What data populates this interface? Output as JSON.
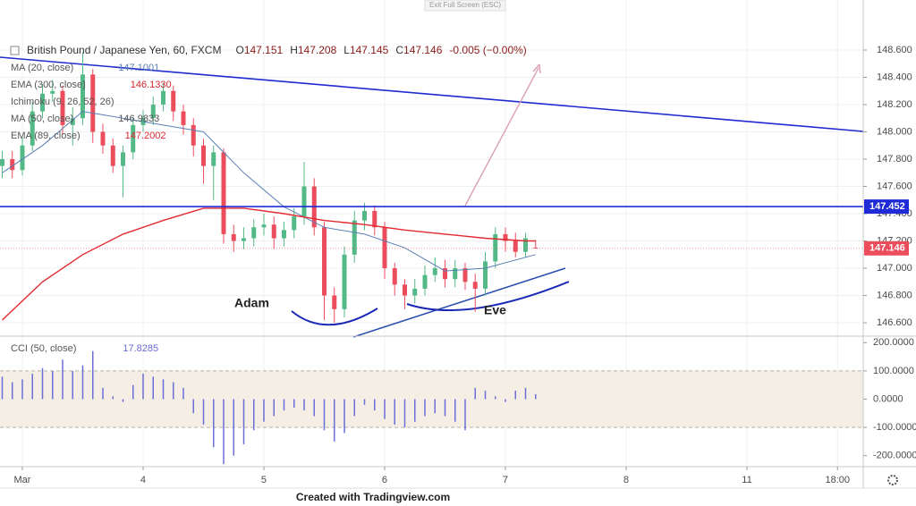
{
  "ui": {
    "exit_button": "Exit Full Screen (ESC)",
    "footer": "Created with Tradingview.com"
  },
  "chart_data": [
    {
      "type": "candlestick",
      "title": "British Pound / Japanese Yen, 60, FXCM",
      "ohlc": [
        {
          "label": "O",
          "value": 147.151
        },
        {
          "label": "H",
          "value": 147.208
        },
        {
          "label": "L",
          "value": 147.145
        },
        {
          "label": "C",
          "value": 147.146
        }
      ],
      "change": {
        "value": -0.005,
        "label": "-0.005 (−0.00%)"
      },
      "xlim": [
        -4.444,
        167.111
      ],
      "ylim": [
        146.502,
        148.967
      ],
      "yticks": [
        {
          "value": 146.6,
          "label": "146.600"
        },
        {
          "value": 146.8,
          "label": "146.800"
        },
        {
          "value": 147.0,
          "label": "147.000"
        },
        {
          "value": 147.2,
          "label": "147.200"
        },
        {
          "value": 147.4,
          "label": "147.400"
        },
        {
          "value": 147.6,
          "label": "147.600"
        },
        {
          "value": 147.8,
          "label": "147.800"
        },
        {
          "value": 148.0,
          "label": "148.000"
        },
        {
          "value": 148.2,
          "label": "148.200"
        },
        {
          "value": 148.4,
          "label": "148.400"
        },
        {
          "value": 148.6,
          "label": "148.600"
        }
      ],
      "grid": true,
      "up_color": "#53b987",
      "down_color": "#eb4d5c",
      "x": [
        -4,
        -2,
        0,
        2,
        4,
        6,
        8,
        10,
        12,
        14,
        16,
        18,
        20,
        22,
        24,
        26,
        28,
        30,
        32,
        34,
        36,
        38,
        40,
        42,
        44,
        46,
        48,
        50,
        52,
        54,
        56,
        58,
        60,
        62,
        64,
        66,
        68,
        70,
        72,
        74,
        76,
        78,
        80,
        82,
        84,
        86,
        88,
        90,
        92,
        94,
        96,
        98,
        100,
        102
      ],
      "candles": {
        "open": [
          147.75,
          147.8,
          147.72,
          147.9,
          148.15,
          148.28,
          148.3,
          148.05,
          148.1,
          148.42,
          148.0,
          147.9,
          147.75,
          147.85,
          148.05,
          148.1,
          148.2,
          148.3,
          148.15,
          148.05,
          147.9,
          147.75,
          147.85,
          147.25,
          147.2,
          147.22,
          147.3,
          147.32,
          147.22,
          147.28,
          147.38,
          147.6,
          147.3,
          146.8,
          146.7,
          147.1,
          147.35,
          147.42,
          147.3,
          147.0,
          146.88,
          146.8,
          146.85,
          146.95,
          147.0,
          146.92,
          147.0,
          146.9,
          146.85,
          147.05,
          147.25,
          147.2,
          147.12,
          147.151
        ],
        "high": [
          147.86,
          147.86,
          147.96,
          148.22,
          148.35,
          148.38,
          148.34,
          148.18,
          148.58,
          148.46,
          148.06,
          147.95,
          147.9,
          148.1,
          148.16,
          148.26,
          148.36,
          148.34,
          148.2,
          148.1,
          147.95,
          147.9,
          147.88,
          147.32,
          147.3,
          147.36,
          147.4,
          147.38,
          147.34,
          147.44,
          147.78,
          147.66,
          147.34,
          146.86,
          147.16,
          147.42,
          147.48,
          147.46,
          147.34,
          147.04,
          146.92,
          146.92,
          147.02,
          147.08,
          147.06,
          147.06,
          147.04,
          146.96,
          147.12,
          147.3,
          147.3,
          147.26,
          147.26,
          147.208
        ],
        "low": [
          147.66,
          147.66,
          147.68,
          147.86,
          148.1,
          148.22,
          147.98,
          147.9,
          148.05,
          147.92,
          147.84,
          147.7,
          147.52,
          147.8,
          148.0,
          148.05,
          148.15,
          148.08,
          147.98,
          147.82,
          147.62,
          147.5,
          147.18,
          147.12,
          147.14,
          147.16,
          147.24,
          147.14,
          147.16,
          147.22,
          147.32,
          147.24,
          146.62,
          146.6,
          146.64,
          147.04,
          147.28,
          147.24,
          146.92,
          146.8,
          146.7,
          146.74,
          146.8,
          146.9,
          146.86,
          146.86,
          146.84,
          146.68,
          146.8,
          147.0,
          147.12,
          147.08,
          147.08,
          147.145
        ],
        "close": [
          147.8,
          147.72,
          147.9,
          148.15,
          148.28,
          148.3,
          148.05,
          148.1,
          148.42,
          148.0,
          147.9,
          147.75,
          147.85,
          148.05,
          148.1,
          148.2,
          148.3,
          148.15,
          148.05,
          147.9,
          147.75,
          147.85,
          147.25,
          147.2,
          147.22,
          147.3,
          147.32,
          147.22,
          147.28,
          147.38,
          147.6,
          147.3,
          146.8,
          146.7,
          147.1,
          147.35,
          147.42,
          147.3,
          147.0,
          146.88,
          146.8,
          146.85,
          146.95,
          147.0,
          146.92,
          147.0,
          146.9,
          146.85,
          147.05,
          147.25,
          147.2,
          147.12,
          147.22,
          147.146
        ]
      },
      "series": [
        {
          "name": "MA (20, close)",
          "color": "#5b7fb5",
          "last_value": 147.1001,
          "x": [
            -4,
            4,
            12,
            20,
            28,
            36,
            44,
            52,
            60,
            68,
            76,
            84,
            92,
            100,
            102
          ],
          "values": [
            147.7,
            147.9,
            148.15,
            148.1,
            148.05,
            148.0,
            147.7,
            147.45,
            147.3,
            147.25,
            147.15,
            146.98,
            147.0,
            147.08,
            147.1
          ]
        },
        {
          "name": "EMA (300, close)",
          "color": "#d3272f",
          "last_value": {
            "value": 146.133,
            "label": "146.1330"
          }
        },
        {
          "name": "Ichimoku (9, 26, 52, 26)",
          "color": "#2e9bd6"
        },
        {
          "name": "MA (50, close)",
          "color": "#555555",
          "last_value": 146.9833
        },
        {
          "name": "EMA (89, close)",
          "color": "#e2292f",
          "last_value": 147.2002,
          "x": [
            -4,
            4,
            12,
            20,
            28,
            36,
            44,
            52,
            60,
            68,
            76,
            84,
            92,
            100,
            102
          ],
          "values": [
            146.62,
            146.9,
            147.1,
            147.25,
            147.35,
            147.44,
            147.44,
            147.4,
            147.35,
            147.32,
            147.28,
            147.25,
            147.22,
            147.2,
            147.2002
          ]
        }
      ],
      "hline": {
        "value": 147.452,
        "color": "#1e2bd6"
      },
      "annotations": [
        "Adam",
        "Eve"
      ]
    },
    {
      "type": "bar",
      "name": "CCI (50, close)",
      "color": "#6b6fd8",
      "xlim": [
        -4.444,
        167.111
      ],
      "ylim": [
        -239,
        223
      ],
      "band": [
        -100,
        100
      ],
      "yticks": [
        {
          "value": 200,
          "label": "200.0000"
        },
        {
          "value": 100,
          "label": "100.0000"
        },
        {
          "value": 0,
          "label": "0.0000"
        },
        {
          "value": -100,
          "label": "-100.0000"
        },
        {
          "value": -200,
          "label": "-200.0000"
        }
      ],
      "xticks": [
        {
          "value": 0,
          "label": "Mar"
        },
        {
          "value": 24,
          "label": "4"
        },
        {
          "value": 48,
          "label": "5"
        },
        {
          "value": 72,
          "label": "6"
        },
        {
          "value": 96,
          "label": "7"
        },
        {
          "value": 120,
          "label": "8"
        },
        {
          "value": 144,
          "label": "11"
        },
        {
          "value": 162,
          "label": "18:00"
        }
      ],
      "x": [
        -4,
        -2,
        0,
        2,
        4,
        6,
        8,
        10,
        12,
        14,
        16,
        18,
        20,
        22,
        24,
        26,
        28,
        30,
        32,
        34,
        36,
        38,
        40,
        42,
        44,
        46,
        48,
        50,
        52,
        54,
        56,
        58,
        60,
        62,
        64,
        66,
        68,
        70,
        72,
        74,
        76,
        78,
        80,
        82,
        84,
        86,
        88,
        90,
        92,
        94,
        96,
        98,
        100,
        102
      ],
      "values": [
        80,
        60,
        70,
        90,
        110,
        100,
        140,
        100,
        120,
        170,
        40,
        10,
        -10,
        50,
        90,
        80,
        70,
        60,
        40,
        -50,
        -90,
        -170,
        -230,
        -200,
        -160,
        -110,
        -80,
        -60,
        -40,
        -30,
        -40,
        -60,
        -110,
        -150,
        -120,
        -60,
        -20,
        -40,
        -70,
        -90,
        -100,
        -80,
        -60,
        -50,
        -60,
        -80,
        -110,
        40,
        30,
        10,
        -10,
        30,
        40,
        17.8285
      ]
    }
  ]
}
